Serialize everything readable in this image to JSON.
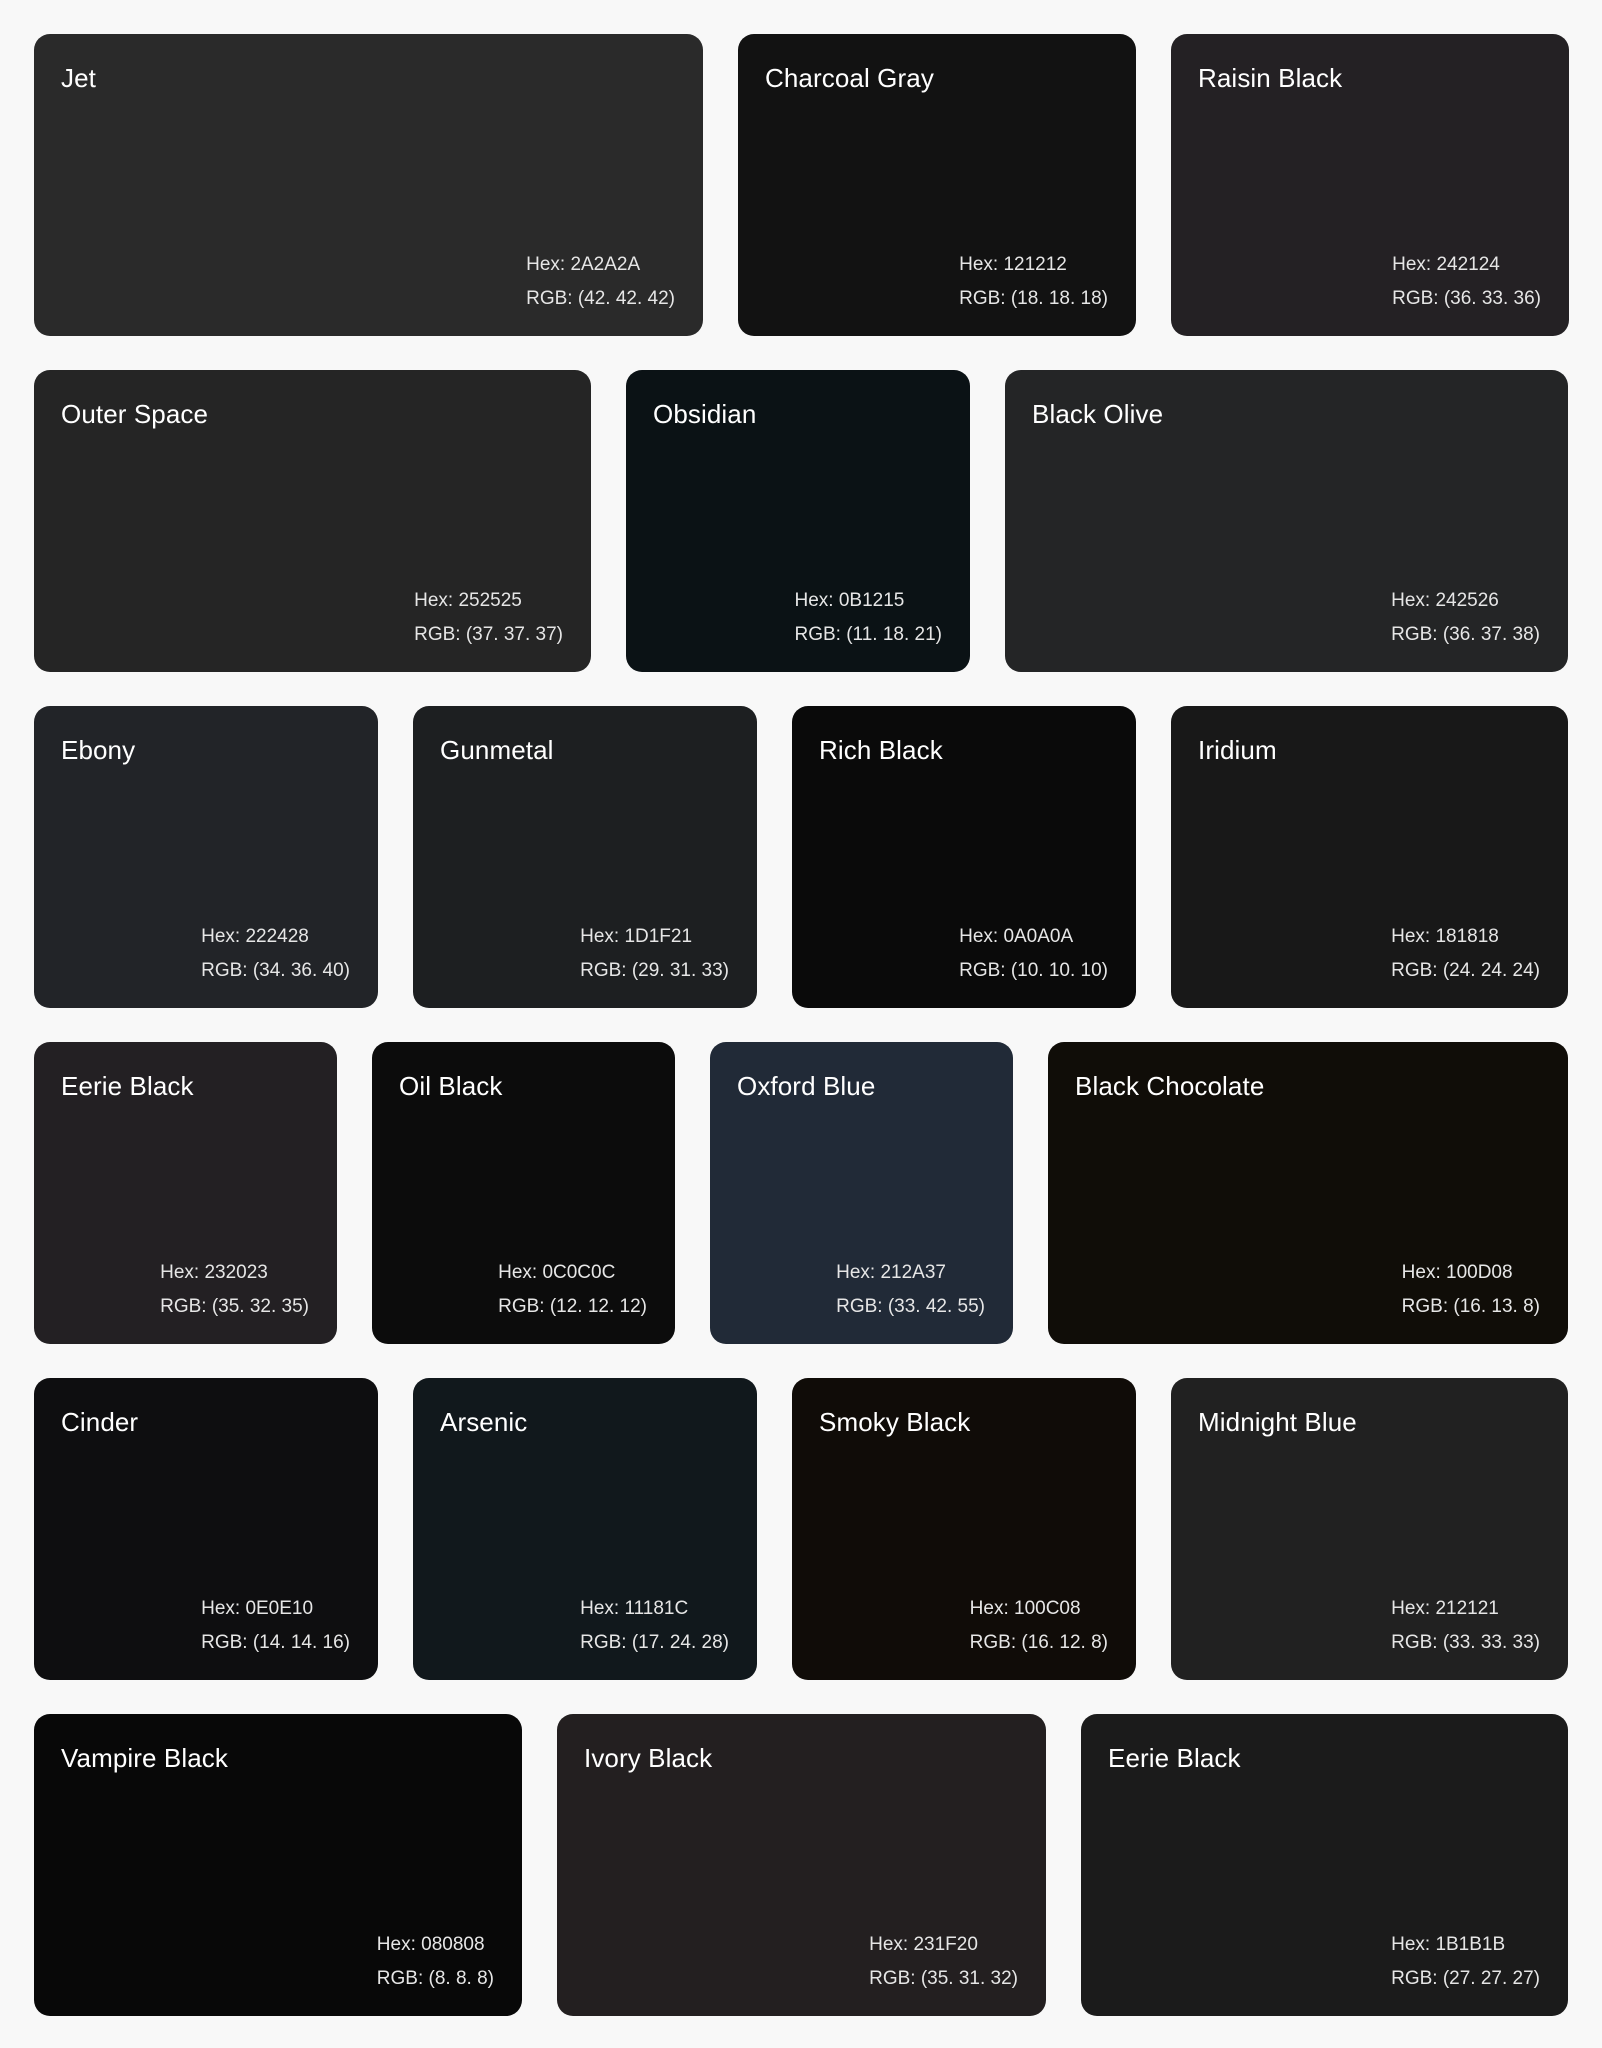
{
  "rows": [
    [
      {
        "name": "Jet",
        "hex": "Hex: 2A2A2A",
        "rgb": "RGB: (42. 42. 42)",
        "color": "#2A2A2A"
      },
      {
        "name": "Charcoal Gray",
        "hex": "Hex: 121212",
        "rgb": "RGB: (18. 18. 18)",
        "color": "#121212"
      },
      {
        "name": "Raisin Black",
        "hex": "Hex: 242124",
        "rgb": "RGB: (36. 33. 36)",
        "color": "#242124"
      }
    ],
    [
      {
        "name": "Outer Space",
        "hex": "Hex: 252525",
        "rgb": "RGB: (37. 37. 37)",
        "color": "#252525"
      },
      {
        "name": "Obsidian",
        "hex": "Hex: 0B1215",
        "rgb": "RGB: (11. 18. 21)",
        "color": "#0B1215"
      },
      {
        "name": "Black Olive",
        "hex": "Hex: 242526",
        "rgb": "RGB: (36. 37. 38)",
        "color": "#242526"
      }
    ],
    [
      {
        "name": "Ebony",
        "hex": "Hex: 222428",
        "rgb": "RGB: (34. 36. 40)",
        "color": "#222428"
      },
      {
        "name": "Gunmetal",
        "hex": "Hex: 1D1F21",
        "rgb": "RGB: (29. 31. 33)",
        "color": "#1D1F21"
      },
      {
        "name": "Rich Black",
        "hex": "Hex: 0A0A0A",
        "rgb": "RGB: (10. 10. 10)",
        "color": "#0A0A0A"
      },
      {
        "name": "Iridium",
        "hex": "Hex: 181818",
        "rgb": "RGB: (24. 24. 24)",
        "color": "#181818"
      }
    ],
    [
      {
        "name": "Eerie Black",
        "hex": "Hex: 232023",
        "rgb": "RGB: (35. 32. 35)",
        "color": "#232023"
      },
      {
        "name": "Oil Black",
        "hex": "Hex: 0C0C0C",
        "rgb": "RGB: (12. 12. 12)",
        "color": "#0C0C0C"
      },
      {
        "name": "Oxford Blue",
        "hex": "Hex: 212A37",
        "rgb": "RGB: (33. 42. 55)",
        "color": "#212A37"
      },
      {
        "name": "Black Chocolate",
        "hex": "Hex: 100D08",
        "rgb": "RGB: (16. 13. 8)",
        "color": "#100D08"
      }
    ],
    [
      {
        "name": "Cinder",
        "hex": "Hex: 0E0E10",
        "rgb": "RGB: (14. 14. 16)",
        "color": "#0E0E10"
      },
      {
        "name": "Arsenic",
        "hex": "Hex: 11181C",
        "rgb": "RGB: (17. 24. 28)",
        "color": "#11181C"
      },
      {
        "name": "Smoky Black",
        "hex": "Hex: 100C08",
        "rgb": "RGB: (16. 12. 8)",
        "color": "#100C08"
      },
      {
        "name": "Midnight Blue",
        "hex": "Hex: 212121",
        "rgb": "RGB: (33. 33. 33)",
        "color": "#212121"
      }
    ],
    [
      {
        "name": "Vampire Black",
        "hex": "Hex: 080808",
        "rgb": "RGB: (8. 8. 8)",
        "color": "#080808"
      },
      {
        "name": "Ivory Black",
        "hex": "Hex: 231F20",
        "rgb": "RGB: (35. 31. 32)",
        "color": "#231F20"
      },
      {
        "name": "Eerie Black",
        "hex": "Hex: 1B1B1B",
        "rgb": "RGB: (27. 27. 27)",
        "color": "#1B1B1B"
      }
    ]
  ]
}
